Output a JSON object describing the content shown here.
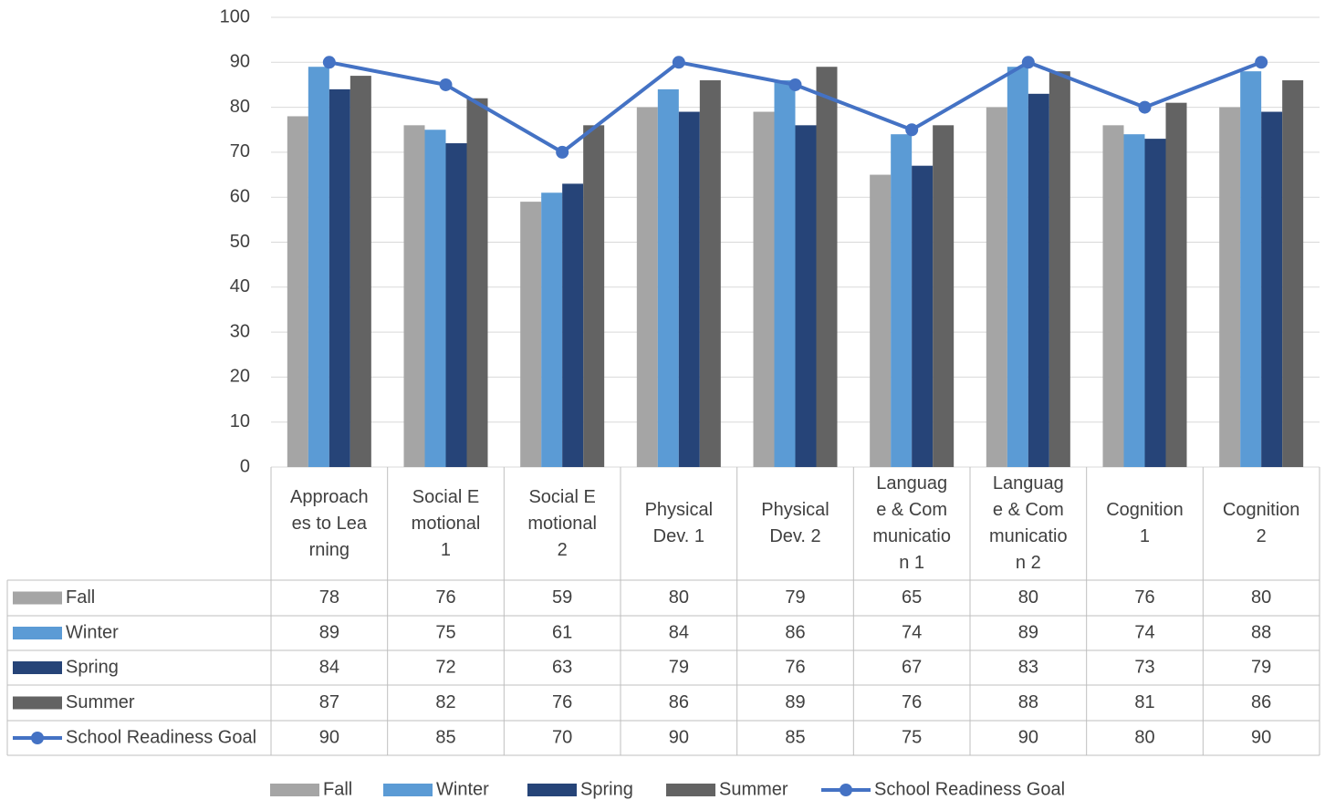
{
  "chart_data": {
    "type": "bar",
    "categories": [
      "Approaches to Learning",
      "Social Emotional 1",
      "Social Emotional 2",
      "Physical Dev. 1",
      "Physical Dev. 2",
      "Language & Communication 1",
      "Language & Communication 2",
      "Cognition 1",
      "Cognition 2"
    ],
    "series": [
      {
        "name": "Fall",
        "color": "#a5a5a5",
        "type": "bar",
        "values": [
          78,
          76,
          59,
          80,
          79,
          65,
          80,
          76,
          80
        ]
      },
      {
        "name": "Winter",
        "color": "#5b9bd5",
        "type": "bar",
        "values": [
          89,
          75,
          61,
          84,
          86,
          74,
          89,
          74,
          88
        ]
      },
      {
        "name": "Spring",
        "color": "#264478",
        "type": "bar",
        "values": [
          84,
          72,
          63,
          79,
          76,
          67,
          83,
          73,
          79
        ]
      },
      {
        "name": "Summer",
        "color": "#636363",
        "type": "bar",
        "values": [
          87,
          82,
          76,
          86,
          89,
          76,
          88,
          81,
          86
        ]
      },
      {
        "name": "School Readiness Goal",
        "color": "#4472c4",
        "type": "line",
        "values": [
          90,
          85,
          70,
          90,
          85,
          75,
          90,
          80,
          90
        ]
      }
    ],
    "ylim": [
      0,
      100
    ],
    "yticks": [
      0,
      10,
      20,
      30,
      40,
      50,
      60,
      70,
      80,
      90,
      100
    ],
    "grid": true,
    "legend": "bottom"
  }
}
